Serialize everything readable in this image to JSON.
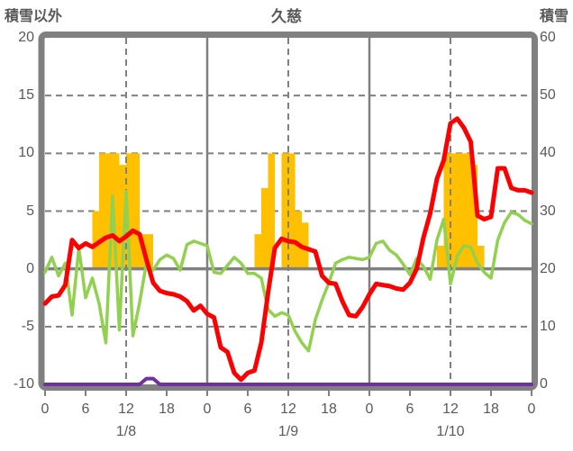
{
  "header": {
    "title": "久慈",
    "left_axis_title": "積雪以外",
    "right_axis_title": "積雪"
  },
  "colors": {
    "bars": "#FFC000",
    "red_line": "#FB0202",
    "green_line": "#92D050",
    "purple_line": "#7030A0",
    "grid": "#808080",
    "border": "#808080",
    "text": "#595959",
    "background": "#FFFFFF"
  },
  "chart_data": {
    "type": "bar+line combo, dual y-axis, 72-hour weather chart",
    "title": "久慈",
    "left_axis": {
      "title": "積雪以外",
      "min": -10,
      "max": 20,
      "tick_labels": [
        "20",
        "15",
        "10",
        "5",
        "0",
        "-5",
        "-10"
      ],
      "dashed_gridlines": [
        15,
        10,
        5,
        -5
      ],
      "solid_gridlines": [
        0
      ]
    },
    "right_axis": {
      "title": "積雪",
      "min": 0,
      "max": 60,
      "tick_labels": [
        "60",
        "50",
        "40",
        "30",
        "20",
        "10",
        "0"
      ]
    },
    "x_axis": {
      "total_hours": 72,
      "tick_every_hours": 6,
      "hour_tick_labels": [
        "0",
        "6",
        "12",
        "18",
        "0",
        "6",
        "12",
        "18",
        "0",
        "6",
        "12",
        "18",
        "0"
      ],
      "date_labels": [
        "1/8",
        "1/9",
        "1/10"
      ],
      "date_label_center_hours": [
        12,
        36,
        60
      ],
      "solid_vline_hours": [
        24,
        48
      ],
      "dashed_vline_hours": [
        12,
        36,
        60
      ]
    },
    "series": [
      {
        "name": "orange-bars",
        "type": "bar",
        "axis": "left",
        "color": "#FFC000",
        "values": [
          0,
          0,
          0,
          0,
          0,
          0,
          0,
          5,
          10,
          10,
          10,
          9,
          10,
          10,
          3,
          3,
          0,
          0,
          0,
          0,
          0,
          0,
          0,
          0,
          0,
          0,
          0,
          0,
          0,
          0,
          0,
          3,
          7,
          10,
          0,
          10,
          10,
          5,
          4,
          0,
          0,
          0,
          0,
          0,
          0,
          0,
          0,
          0,
          0,
          0,
          0,
          0,
          0,
          0,
          0,
          0,
          0,
          0,
          2,
          10,
          10,
          10,
          10,
          9,
          2,
          0,
          0,
          0,
          0,
          0,
          0,
          0
        ]
      },
      {
        "name": "green-line",
        "type": "line",
        "axis": "left",
        "color": "#92D050",
        "width": 3.5,
        "values": [
          -0.3,
          1.0,
          -0.6,
          0.5,
          -4.0,
          1.8,
          -2.5,
          -0.8,
          -3.0,
          -6.4,
          6.3,
          -5.3,
          6.7,
          -5.8,
          -2.9,
          0.5,
          -0.1,
          0.8,
          1.2,
          0.9,
          -0.1,
          2.1,
          2.4,
          2.2,
          2.0,
          -0.3,
          -0.4,
          0.3,
          1.0,
          0.5,
          -0.4,
          -0.4,
          -0.8,
          -3.5,
          -4.1,
          -3.8,
          -4.0,
          -5.4,
          -6.4,
          -7.1,
          -4.4,
          -2.7,
          -1.2,
          0.5,
          0.8,
          1.0,
          0.9,
          0.8,
          1.0,
          2.2,
          2.4,
          1.6,
          1.2,
          0.4,
          -0.5,
          0.9,
          0.2,
          -0.9,
          2.5,
          4.3,
          -1.3,
          1.1,
          2.0,
          1.9,
          0.5,
          -0.3,
          -0.8,
          2.5,
          4.0,
          4.9,
          4.7,
          4.2,
          3.9
        ]
      },
      {
        "name": "purple-line",
        "type": "line",
        "axis": "right",
        "color": "#7030A0",
        "width": 4,
        "values": [
          0,
          0,
          0,
          0,
          0,
          0,
          0,
          0,
          0,
          0,
          0,
          0,
          0,
          0,
          0,
          1,
          1,
          0,
          0,
          0,
          0,
          0,
          0,
          0,
          0,
          0,
          0,
          0,
          0,
          0,
          0,
          0,
          0,
          0,
          0,
          0,
          0,
          0,
          0,
          0,
          0,
          0,
          0,
          0,
          0,
          0,
          0,
          0,
          0,
          0,
          0,
          0,
          0,
          0,
          0,
          0,
          0,
          0,
          0,
          0,
          0,
          0,
          0,
          0,
          0,
          0,
          0,
          0,
          0,
          0,
          0,
          0,
          0
        ]
      },
      {
        "name": "red-line",
        "type": "line",
        "axis": "left",
        "color": "#FB0202",
        "width": 5,
        "values": [
          -3.0,
          -2.4,
          -2.3,
          -1.4,
          2.5,
          1.8,
          2.2,
          1.9,
          2.3,
          2.7,
          2.9,
          2.4,
          2.8,
          3.3,
          3.0,
          0.8,
          -1.2,
          -1.9,
          -2.1,
          -2.2,
          -2.4,
          -2.8,
          -3.6,
          -3.2,
          -3.9,
          -4.2,
          -6.8,
          -7.2,
          -9.0,
          -9.6,
          -9.0,
          -8.8,
          -6.4,
          -2.1,
          1.8,
          2.6,
          2.4,
          2.3,
          1.9,
          1.7,
          1.5,
          -0.6,
          -1.2,
          -1.3,
          -2.8,
          -4.0,
          -4.1,
          -3.3,
          -2.2,
          -1.3,
          -1.4,
          -1.5,
          -1.7,
          -1.8,
          -1.2,
          0.0,
          2.7,
          4.8,
          7.8,
          9.4,
          12.6,
          13.0,
          12.2,
          11.0,
          4.6,
          4.3,
          4.5,
          8.7,
          8.7,
          7.0,
          6.8,
          6.8,
          6.6
        ]
      }
    ]
  }
}
